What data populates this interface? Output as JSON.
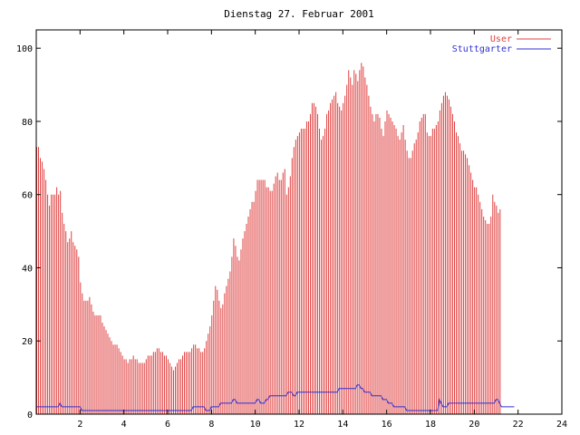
{
  "chart_data": {
    "type": "bar",
    "title": "Dienstag 27. Februar 2001",
    "xlabel": "",
    "ylabel": "",
    "xlim": [
      0,
      24
    ],
    "ylim": [
      0,
      105
    ],
    "x_ticks": [
      2,
      4,
      6,
      8,
      10,
      12,
      14,
      16,
      18,
      20,
      22,
      24
    ],
    "y_ticks": [
      0,
      20,
      40,
      60,
      80,
      100
    ],
    "grid": false,
    "legend_position": "top-right",
    "x_step_hours": 0.0833,
    "series": [
      {
        "name": "User",
        "color": "#e04040",
        "style": "impulses",
        "values": [
          73,
          73,
          70,
          69,
          67,
          64,
          60,
          57,
          60,
          60,
          60,
          62,
          60,
          61,
          55,
          52,
          50,
          47,
          48,
          50,
          47,
          46,
          45,
          43,
          36,
          33,
          31,
          31,
          31,
          32,
          30,
          28,
          27,
          27,
          27,
          27,
          25,
          24,
          23,
          22,
          21,
          20,
          19,
          19,
          19,
          18,
          17,
          16,
          15,
          15,
          14,
          15,
          15,
          16,
          15,
          15,
          14,
          14,
          14,
          14,
          15,
          16,
          16,
          16,
          17,
          17,
          18,
          18,
          17,
          17,
          16,
          16,
          15,
          14,
          13,
          12,
          13,
          14,
          15,
          15,
          16,
          17,
          17,
          17,
          17,
          18,
          19,
          19,
          18,
          18,
          17,
          17,
          18,
          20,
          22,
          24,
          27,
          31,
          35,
          34,
          31,
          29,
          30,
          33,
          35,
          37,
          39,
          43,
          48,
          46,
          43,
          42,
          45,
          48,
          50,
          52,
          54,
          56,
          58,
          58,
          61,
          64,
          64,
          64,
          64,
          64,
          62,
          62,
          61,
          61,
          63,
          65,
          66,
          64,
          64,
          66,
          67,
          60,
          62,
          65,
          70,
          73,
          75,
          76,
          77,
          78,
          78,
          78,
          80,
          80,
          82,
          85,
          85,
          84,
          82,
          78,
          75,
          76,
          78,
          82,
          83,
          85,
          86,
          87,
          88,
          85,
          84,
          83,
          85,
          87,
          90,
          94,
          92,
          90,
          94,
          93,
          91,
          94,
          96,
          95,
          92,
          90,
          87,
          84,
          82,
          80,
          82,
          82,
          81,
          78,
          76,
          80,
          83,
          82,
          81,
          80,
          79,
          78,
          76,
          75,
          77,
          79,
          75,
          72,
          70,
          70,
          72,
          74,
          75,
          77,
          80,
          81,
          82,
          82,
          77,
          76,
          76,
          78,
          78,
          79,
          80,
          83,
          85,
          87,
          88,
          87,
          86,
          84,
          82,
          80,
          77,
          76,
          74,
          72,
          72,
          71,
          70,
          68,
          66,
          64,
          62,
          62,
          60,
          58,
          56,
          54,
          53,
          52,
          52,
          54,
          60,
          58,
          57,
          55,
          56
        ]
      },
      {
        "name": "Stuttgarter",
        "color": "#3030d0",
        "style": "lines",
        "values": [
          2,
          2,
          2,
          2,
          2,
          2,
          2,
          2,
          2,
          2,
          2,
          2,
          2,
          3,
          2,
          2,
          2,
          2,
          2,
          2,
          2,
          2,
          2,
          2,
          2,
          1,
          1,
          1,
          1,
          1,
          1,
          1,
          1,
          1,
          1,
          1,
          1,
          1,
          1,
          1,
          1,
          1,
          1,
          1,
          1,
          1,
          1,
          1,
          1,
          1,
          1,
          1,
          1,
          1,
          1,
          1,
          1,
          1,
          1,
          1,
          1,
          1,
          1,
          1,
          1,
          1,
          1,
          1,
          1,
          1,
          1,
          1,
          1,
          1,
          1,
          1,
          1,
          1,
          1,
          1,
          1,
          1,
          1,
          1,
          1,
          1,
          2,
          2,
          2,
          2,
          2,
          2,
          2,
          1,
          1,
          1,
          2,
          2,
          2,
          2,
          2,
          3,
          3,
          3,
          3,
          3,
          3,
          3,
          4,
          4,
          3,
          3,
          3,
          3,
          3,
          3,
          3,
          3,
          3,
          3,
          3,
          4,
          4,
          3,
          3,
          3,
          4,
          4,
          5,
          5,
          5,
          5,
          5,
          5,
          5,
          5,
          5,
          5,
          6,
          6,
          6,
          5,
          5,
          6,
          6,
          6,
          6,
          6,
          6,
          6,
          6,
          6,
          6,
          6,
          6,
          6,
          6,
          6,
          6,
          6,
          6,
          6,
          6,
          6,
          6,
          6,
          7,
          7,
          7,
          7,
          7,
          7,
          7,
          7,
          7,
          7,
          8,
          8,
          7,
          7,
          6,
          6,
          6,
          6,
          5,
          5,
          5,
          5,
          5,
          5,
          4,
          4,
          4,
          3,
          3,
          3,
          2,
          2,
          2,
          2,
          2,
          2,
          2,
          1,
          1,
          1,
          1,
          1,
          1,
          1,
          1,
          1,
          1,
          1,
          1,
          1,
          1,
          1,
          1,
          1,
          1,
          4,
          3,
          2,
          2,
          2,
          3,
          3,
          3,
          3,
          3,
          3,
          3,
          3,
          3,
          3,
          3,
          3,
          3,
          3,
          3,
          3,
          3,
          3,
          3,
          3,
          3,
          3,
          3,
          3,
          3,
          3,
          4,
          4,
          3,
          2,
          2,
          2,
          2,
          2,
          2,
          2,
          2
        ]
      }
    ]
  }
}
